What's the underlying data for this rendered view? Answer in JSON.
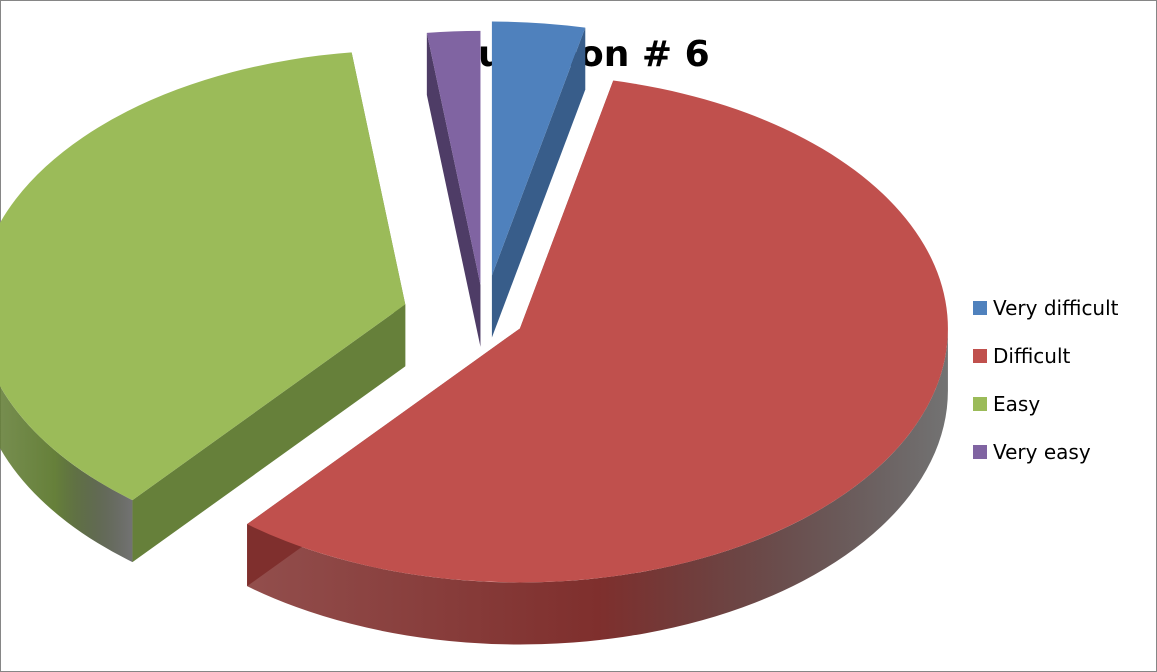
{
  "chart_data": {
    "type": "pie",
    "title": "Question # 6",
    "legend_position": "right",
    "exploded": true,
    "three_d": true,
    "categories": [
      "Very difficult",
      "Difficult",
      "Easy",
      "Very easy"
    ],
    "values": [
      3.5,
      57.5,
      37,
      2
    ],
    "colors": [
      "#4F81BD",
      "#C0504D",
      "#9BBB59",
      "#8064A2"
    ],
    "side_colors": [
      "#385D8A",
      "#7F2F2D",
      "#66803A",
      "#4E3C66"
    ]
  }
}
